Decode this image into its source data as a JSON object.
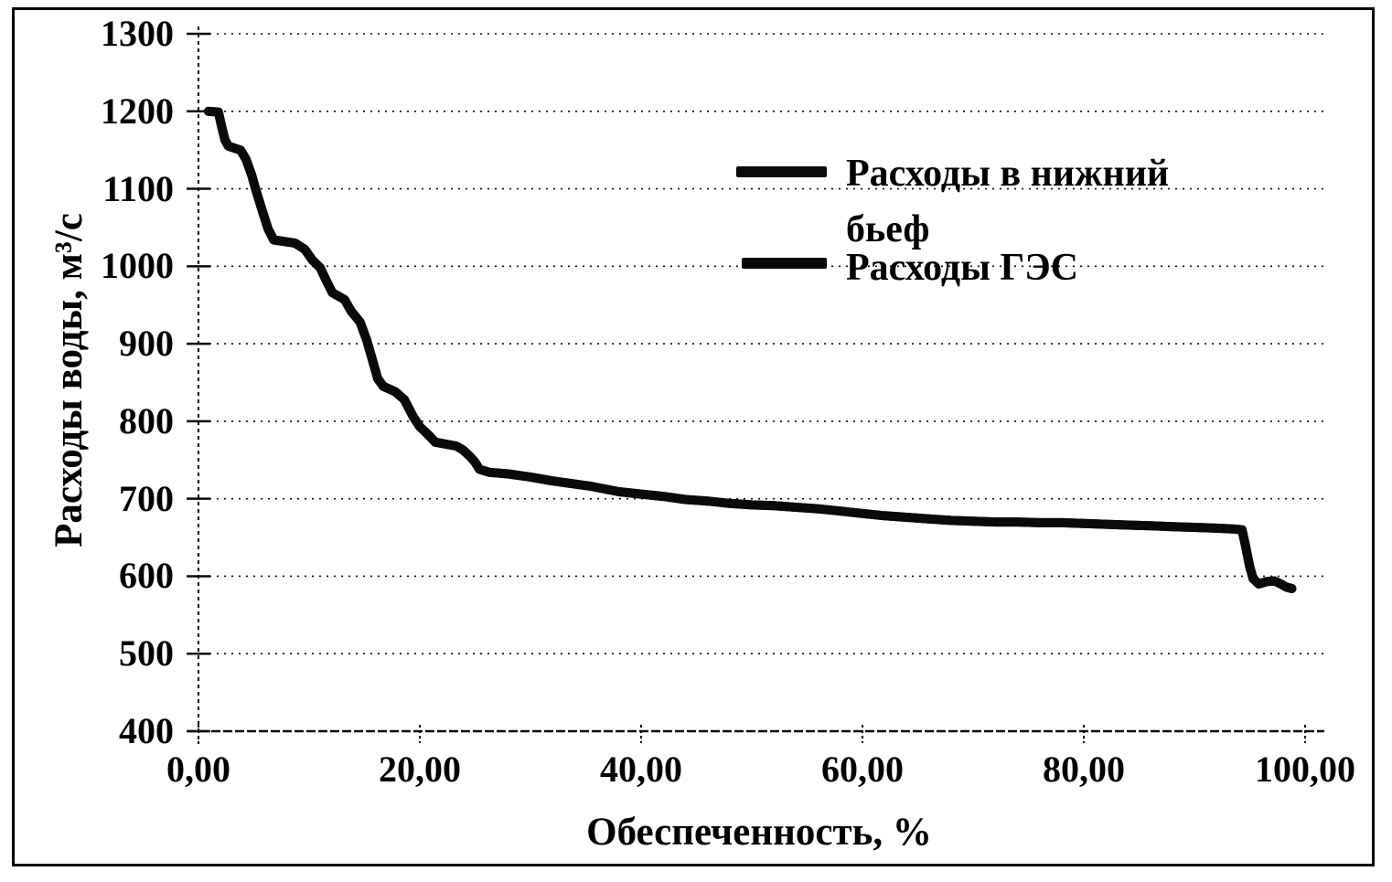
{
  "figure": {
    "background_color": "#ffffff",
    "frame_color": "#000000",
    "ink_color": "#0a0a0a"
  },
  "chart_data": {
    "type": "line",
    "title": "",
    "xlabel": "Обеспеченность, %",
    "ylabel": "Расходы воды, м³/с",
    "xlim": [
      0,
      100
    ],
    "ylim": [
      400,
      1300
    ],
    "x_tick_values": [
      0,
      20,
      40,
      60,
      80,
      100
    ],
    "x_tick_labels": [
      "0,00",
      "20,00",
      "40,00",
      "60,00",
      "80,00",
      "100,00"
    ],
    "y_tick_values": [
      1300,
      1200,
      1100,
      1000,
      900,
      800,
      700,
      600,
      500,
      400
    ],
    "grid": "horizontal dotted gridlines at every 100 m3/s",
    "legend_position": "inside upper right",
    "legend": [
      "Расходы в нижний бьеф",
      "Расходы ГЭС"
    ],
    "series_coincide": true,
    "series": [
      {
        "name": "Расходы в нижний бьеф"
      },
      {
        "name": "Расходы ГЭС"
      }
    ],
    "points": [
      [
        0.9,
        1200
      ],
      [
        1.8,
        1199
      ],
      [
        2.1,
        1180
      ],
      [
        2.4,
        1163
      ],
      [
        2.7,
        1155
      ],
      [
        3.8,
        1150
      ],
      [
        4.3,
        1138
      ],
      [
        4.8,
        1118
      ],
      [
        5.2,
        1098
      ],
      [
        5.8,
        1070
      ],
      [
        6.3,
        1048
      ],
      [
        6.8,
        1034
      ],
      [
        8.7,
        1030
      ],
      [
        9.6,
        1022
      ],
      [
        10.3,
        1008
      ],
      [
        11.0,
        998
      ],
      [
        11.6,
        980
      ],
      [
        12.1,
        966
      ],
      [
        13.2,
        957
      ],
      [
        13.8,
        942
      ],
      [
        14.6,
        928
      ],
      [
        15.2,
        905
      ],
      [
        15.7,
        880
      ],
      [
        16.2,
        855
      ],
      [
        16.7,
        845
      ],
      [
        17.8,
        838
      ],
      [
        18.6,
        828
      ],
      [
        19.4,
        806
      ],
      [
        20.0,
        793
      ],
      [
        20.8,
        782
      ],
      [
        21.4,
        773
      ],
      [
        23.3,
        768
      ],
      [
        23.9,
        763
      ],
      [
        24.5,
        755
      ],
      [
        25.0,
        747
      ],
      [
        25.4,
        738
      ],
      [
        26.3,
        734
      ],
      [
        28.0,
        732
      ],
      [
        30.0,
        728
      ],
      [
        32.0,
        723
      ],
      [
        34.0,
        719
      ],
      [
        35.5,
        716
      ],
      [
        38.0,
        709
      ],
      [
        40.0,
        706
      ],
      [
        42.0,
        703
      ],
      [
        44.0,
        699
      ],
      [
        46.0,
        697
      ],
      [
        48.0,
        694
      ],
      [
        50.0,
        692
      ],
      [
        52.0,
        691
      ],
      [
        54.0,
        689
      ],
      [
        56.0,
        687
      ],
      [
        58.0,
        684
      ],
      [
        60.0,
        681
      ],
      [
        62.0,
        678
      ],
      [
        64.0,
        676
      ],
      [
        66.0,
        674
      ],
      [
        68.0,
        672
      ],
      [
        70.0,
        671
      ],
      [
        72.0,
        670
      ],
      [
        74.0,
        670
      ],
      [
        76.0,
        669
      ],
      [
        78.0,
        669
      ],
      [
        80.0,
        668
      ],
      [
        82.0,
        667
      ],
      [
        84.0,
        666
      ],
      [
        86.0,
        665
      ],
      [
        88.0,
        664
      ],
      [
        90.0,
        663
      ],
      [
        92.0,
        662
      ],
      [
        93.5,
        661
      ],
      [
        94.3,
        660
      ],
      [
        94.6,
        640
      ],
      [
        95.0,
        612
      ],
      [
        95.3,
        597
      ],
      [
        95.8,
        590
      ],
      [
        96.5,
        593
      ],
      [
        97.2,
        594
      ],
      [
        97.8,
        590
      ],
      [
        98.3,
        586
      ],
      [
        98.8,
        584
      ]
    ]
  }
}
